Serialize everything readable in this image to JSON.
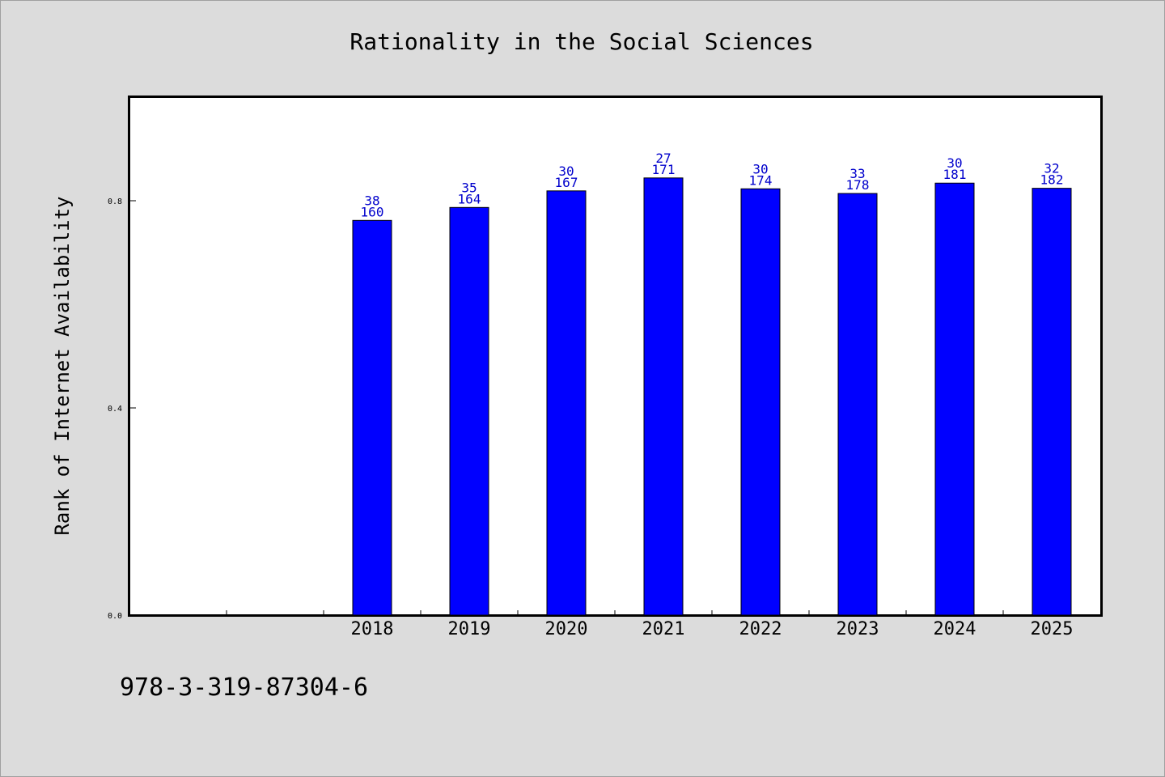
{
  "chart_data": {
    "type": "bar",
    "title": "Rationality in the Social Sciences",
    "xlabel": "",
    "ylabel": "Rank of Internet Availability",
    "categories": [
      "2018",
      "2019",
      "2020",
      "2021",
      "2022",
      "2023",
      "2024",
      "2025"
    ],
    "values": [
      0.762,
      0.787,
      0.819,
      0.844,
      0.823,
      0.814,
      0.834,
      0.824
    ],
    "label_top": [
      "38",
      "35",
      "30",
      "27",
      "30",
      "33",
      "30",
      "32"
    ],
    "label_bottom": [
      "160",
      "164",
      "167",
      "171",
      "174",
      "178",
      "181",
      "182"
    ],
    "ylim": [
      0,
      1.0
    ],
    "yticks": [
      "0.0",
      "0.4",
      "0.8"
    ],
    "ytick_values": [
      0.0,
      0.4,
      0.8
    ],
    "grid": false,
    "legend": "none",
    "colors": {
      "bar": "#0000ff",
      "label": "#0000cc",
      "background": "#dcdcdc",
      "plot": "#ffffff"
    }
  },
  "footer": {
    "isbn": "978-3-319-87304-6"
  }
}
